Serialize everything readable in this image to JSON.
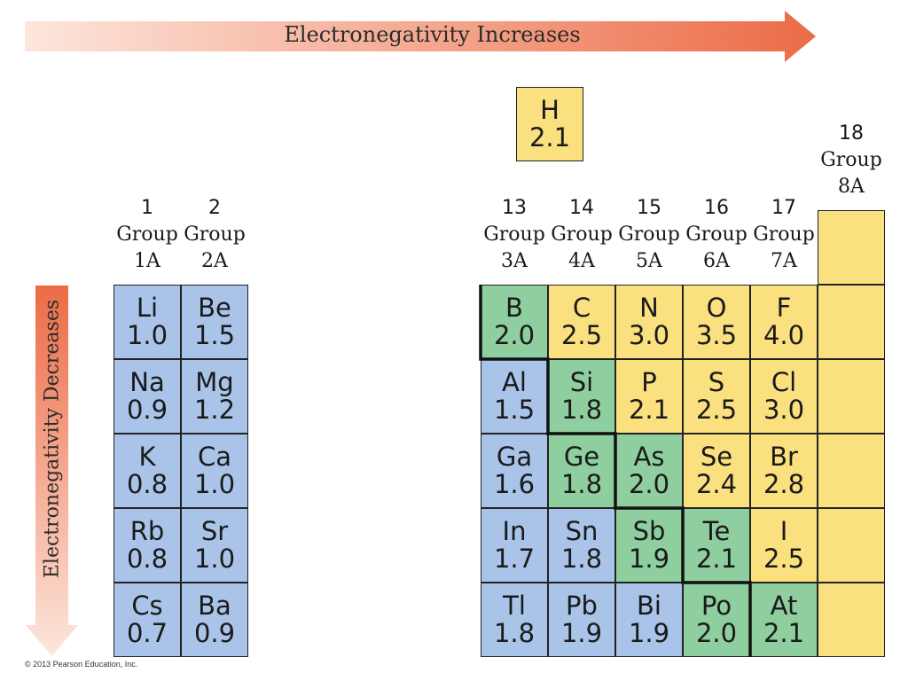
{
  "top_arrow": {
    "label": "Electronegativity Increases"
  },
  "side_arrow": {
    "label": "Electronegativity Decreases"
  },
  "copyright": "© 2013 Pearson Education, Inc.",
  "colors": {
    "metal": "#a9c4e8",
    "metalloid": "#8fcf9f",
    "nonmetal": "#fbe07f"
  },
  "group_headers": [
    {
      "num": "1",
      "group": "Group",
      "label": "1A"
    },
    {
      "num": "2",
      "group": "Group",
      "label": "2A"
    },
    {
      "num": "13",
      "group": "Group",
      "label": "3A"
    },
    {
      "num": "14",
      "group": "Group",
      "label": "4A"
    },
    {
      "num": "15",
      "group": "Group",
      "label": "5A"
    },
    {
      "num": "16",
      "group": "Group",
      "label": "6A"
    },
    {
      "num": "17",
      "group": "Group",
      "label": "7A"
    },
    {
      "num": "18",
      "group": "Group",
      "label": "8A"
    }
  ],
  "elements": [
    {
      "symbol": "H",
      "en": "2.1",
      "type": "nonmetal"
    },
    {
      "symbol": "Li",
      "en": "1.0",
      "type": "metal"
    },
    {
      "symbol": "Be",
      "en": "1.5",
      "type": "metal"
    },
    {
      "symbol": "Na",
      "en": "0.9",
      "type": "metal"
    },
    {
      "symbol": "Mg",
      "en": "1.2",
      "type": "metal"
    },
    {
      "symbol": "K",
      "en": "0.8",
      "type": "metal"
    },
    {
      "symbol": "Ca",
      "en": "1.0",
      "type": "metal"
    },
    {
      "symbol": "Rb",
      "en": "0.8",
      "type": "metal"
    },
    {
      "symbol": "Sr",
      "en": "1.0",
      "type": "metal"
    },
    {
      "symbol": "Cs",
      "en": "0.7",
      "type": "metal"
    },
    {
      "symbol": "Ba",
      "en": "0.9",
      "type": "metal"
    },
    {
      "symbol": "B",
      "en": "2.0",
      "type": "metalloid"
    },
    {
      "symbol": "C",
      "en": "2.5",
      "type": "nonmetal"
    },
    {
      "symbol": "N",
      "en": "3.0",
      "type": "nonmetal"
    },
    {
      "symbol": "O",
      "en": "3.5",
      "type": "nonmetal"
    },
    {
      "symbol": "F",
      "en": "4.0",
      "type": "nonmetal"
    },
    {
      "symbol": "Al",
      "en": "1.5",
      "type": "metal"
    },
    {
      "symbol": "Si",
      "en": "1.8",
      "type": "metalloid"
    },
    {
      "symbol": "P",
      "en": "2.1",
      "type": "nonmetal"
    },
    {
      "symbol": "S",
      "en": "2.5",
      "type": "nonmetal"
    },
    {
      "symbol": "Cl",
      "en": "3.0",
      "type": "nonmetal"
    },
    {
      "symbol": "Ga",
      "en": "1.6",
      "type": "metal"
    },
    {
      "symbol": "Ge",
      "en": "1.8",
      "type": "metalloid"
    },
    {
      "symbol": "As",
      "en": "2.0",
      "type": "metalloid"
    },
    {
      "symbol": "Se",
      "en": "2.4",
      "type": "nonmetal"
    },
    {
      "symbol": "Br",
      "en": "2.8",
      "type": "nonmetal"
    },
    {
      "symbol": "In",
      "en": "1.7",
      "type": "metal"
    },
    {
      "symbol": "Sn",
      "en": "1.8",
      "type": "metal"
    },
    {
      "symbol": "Sb",
      "en": "1.9",
      "type": "metalloid"
    },
    {
      "symbol": "Te",
      "en": "2.1",
      "type": "metalloid"
    },
    {
      "symbol": "I",
      "en": "2.5",
      "type": "nonmetal"
    },
    {
      "symbol": "Tl",
      "en": "1.8",
      "type": "metal"
    },
    {
      "symbol": "Pb",
      "en": "1.9",
      "type": "metal"
    },
    {
      "symbol": "Bi",
      "en": "1.9",
      "type": "metal"
    },
    {
      "symbol": "Po",
      "en": "2.0",
      "type": "metalloid"
    },
    {
      "symbol": "At",
      "en": "2.1",
      "type": "metalloid"
    }
  ]
}
